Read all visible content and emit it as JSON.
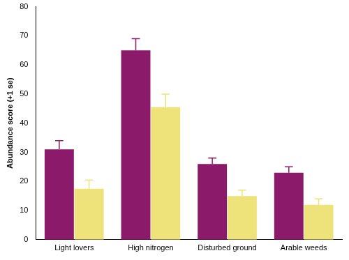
{
  "chart_data": {
    "type": "bar",
    "y_label": "Abundance score (+1 se)",
    "categories": [
      "Light lovers",
      "High nitrogen",
      "Disturbed ground",
      "Arable weeds"
    ],
    "series": [
      {
        "color": "#8b1a6b",
        "values": [
          31,
          65,
          26,
          23
        ],
        "errors": [
          3,
          4,
          2,
          2
        ]
      },
      {
        "color": "#eee27a",
        "values": [
          17.5,
          45.5,
          15,
          12
        ],
        "errors": [
          3,
          4.5,
          2,
          2
        ]
      }
    ],
    "ylim": [
      0,
      80
    ],
    "yticks": [
      0,
      10,
      20,
      30,
      40,
      50,
      60,
      70,
      80
    ],
    "grid": false
  }
}
